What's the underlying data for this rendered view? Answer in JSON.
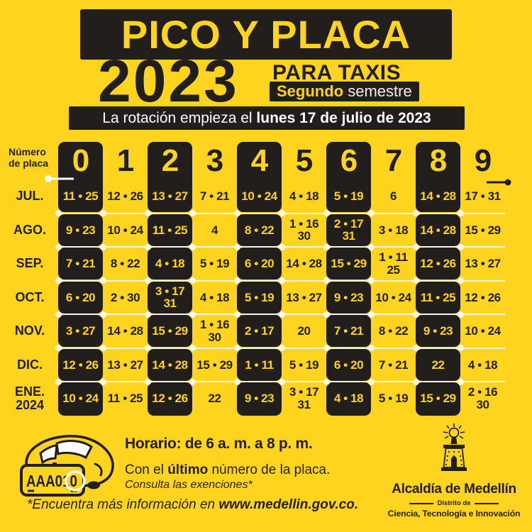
{
  "header": {
    "title": "PICO Y PLACA",
    "year": "2023",
    "audience": "PARA TAXIS",
    "semester_bold": "Segundo",
    "semester_rest": " semestre",
    "rotation_prefix": "La rotación empieza el ",
    "rotation_bold": "lunes 17 de julio de 2023"
  },
  "table": {
    "corner_label": "Número\nde placa",
    "digits": [
      "0",
      "1",
      "2",
      "3",
      "4",
      "5",
      "6",
      "7",
      "8",
      "9"
    ],
    "rows": [
      {
        "month": "JUL.",
        "values": [
          "11 • 25",
          "12 • 26",
          "13 • 27",
          "7 • 21",
          "10 • 24",
          "4 • 18",
          "5 • 19",
          "6",
          "14 • 28",
          "17 • 31"
        ]
      },
      {
        "month": "AGO.",
        "values": [
          "9 • 23",
          "10 • 24",
          "11 • 25",
          "4",
          "8 • 22",
          "1 • 16\n30",
          "2 • 17\n31",
          "3 • 18",
          "14 • 28",
          "15 • 29"
        ]
      },
      {
        "month": "SEP.",
        "values": [
          "7 • 21",
          "8 • 22",
          "4 • 18",
          "5 • 19",
          "6 • 20",
          "14 • 28",
          "15 • 29",
          "1 • 11\n25",
          "12 • 26",
          "13 • 27"
        ]
      },
      {
        "month": "OCT.",
        "values": [
          "6 • 20",
          "2 • 30",
          "3 • 17\n31",
          "4 • 18",
          "5 • 19",
          "13 • 27",
          "9 • 23",
          "10 • 24",
          "11 • 25",
          "12 • 26"
        ]
      },
      {
        "month": "NOV.",
        "values": [
          "3 • 27",
          "14 • 28",
          "15 • 29",
          "1 • 16\n30",
          "2 • 17",
          "20",
          "7 • 21",
          "8 • 22",
          "9 • 23",
          "10 • 24"
        ]
      },
      {
        "month": "DIC.",
        "values": [
          "12 • 26",
          "13 • 27",
          "14 • 28",
          "15 • 29",
          "1 • 11",
          "5 • 19",
          "6 • 20",
          "7 • 21",
          "22",
          "4 • 18"
        ]
      },
      {
        "month": "ENE.\n2024",
        "values": [
          "10 • 24",
          "11 • 25",
          "12 • 26",
          "22",
          "9 • 23",
          "3 • 17\n31",
          "4 • 18",
          "5 • 19",
          "15 • 29",
          "2 • 16\n30"
        ]
      }
    ]
  },
  "footer": {
    "schedule": "Horario: de 6 a. m. a 8 p. m.",
    "note_prefix": "Con el ",
    "note_bold": "último",
    "note_suffix": " número de la placa.",
    "exemptions_note": "Consulta las exenciones*",
    "info_prefix": "*Encuentra más información en ",
    "info_bold": "www.medellin.gov.co.",
    "plate_text": "AAA010",
    "logo": {
      "name": "Alcaldía de Medellín",
      "district": "Distrito de",
      "district_sub": "Ciencia, Tecnología e Innovación"
    }
  },
  "colors": {
    "background_yellow": "#FFD41E",
    "ink_black": "#221E1B",
    "cream_white": "#F6F0DC",
    "divider_white": "#FAF4E2"
  }
}
